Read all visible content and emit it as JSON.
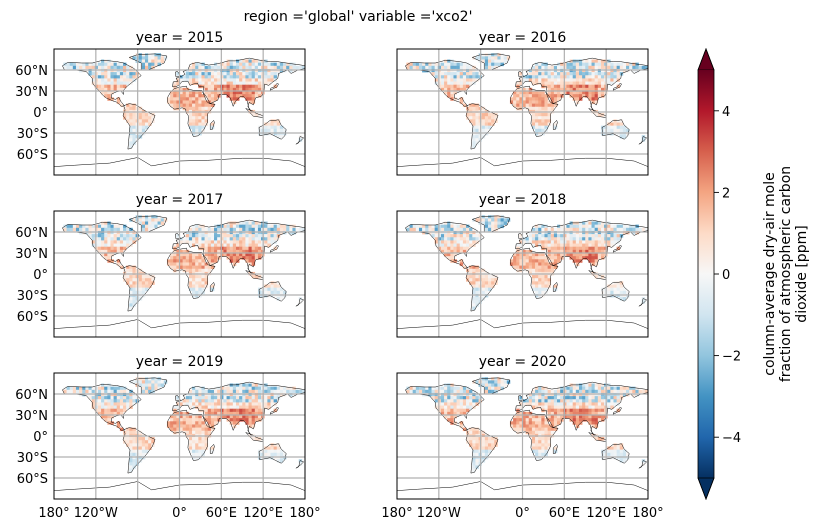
{
  "figure": {
    "suptitle": "region ='global' variable ='xco2'"
  },
  "chart_data": {
    "type": "heatmap",
    "projection": "equirectangular world map",
    "grid": true,
    "panel_titles": [
      "year = 2015",
      "year = 2016",
      "year = 2017",
      "year = 2018",
      "year = 2019",
      "year = 2020"
    ],
    "lat_tick_labels": [
      "60°N",
      "30°N",
      "0°",
      "30°S",
      "60°S"
    ],
    "lat_ticks": [
      60,
      30,
      0,
      -30,
      -60
    ],
    "lon_tick_labels": [
      "180°",
      "120°W",
      "0°",
      "60°E",
      "120°E",
      "180°"
    ],
    "lon_ticks": [
      -180,
      -120,
      0,
      60,
      120,
      180
    ],
    "colorbar": {
      "label_lines": [
        "column-average dry-air mole",
        "fraction of atmospheric carbon",
        "dioxide [ppm]"
      ],
      "ticks": [
        4,
        2,
        0,
        -2,
        -4
      ],
      "tick_labels": [
        "4",
        "2",
        "0",
        "−2",
        "−4"
      ],
      "range": [
        -5,
        5
      ],
      "extend": "both",
      "colormap": "RdBu_r"
    },
    "map_pattern": {
      "description_colors": {
        "positive": "#b2182b",
        "negative": "#2166ac",
        "neutral": "#f7f7f7"
      }
    }
  }
}
